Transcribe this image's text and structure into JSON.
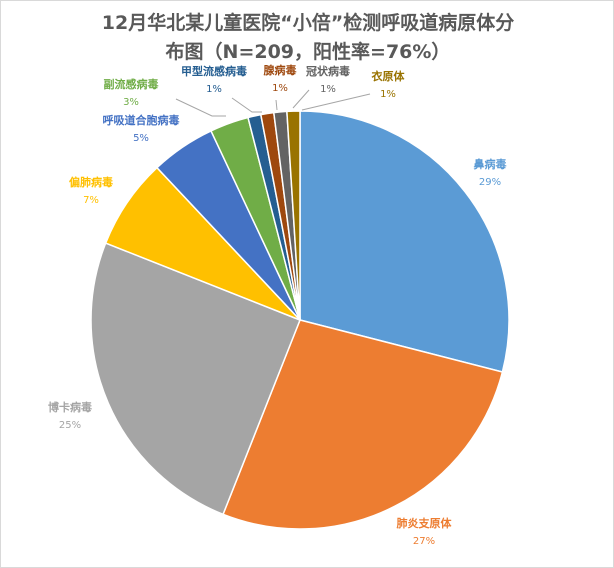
{
  "title_line1": "12月华北某儿童医院“小倍”检测呼吸道病原体分",
  "title_line2": "布图（N=209，阳性率=76%）",
  "chart_data": {
    "type": "pie",
    "title": "12月华北某儿童医院“小倍”检测呼吸道病原体分布图（N=209，阳性率=76%）",
    "start_angle": "12 o'clock",
    "direction": "clockwise",
    "slices": [
      {
        "label": "鼻病毒",
        "value": 29,
        "pct_label": "29%",
        "color": "#5B9BD5"
      },
      {
        "label": "肺炎支原体",
        "value": 27,
        "pct_label": "27%",
        "color": "#ED7D31"
      },
      {
        "label": "博卡病毒",
        "value": 25,
        "pct_label": "25%",
        "color": "#A5A5A5"
      },
      {
        "label": "偏肺病毒",
        "value": 7,
        "pct_label": "7%",
        "color": "#FFC000"
      },
      {
        "label": "呼吸道合胞病毒",
        "value": 5,
        "pct_label": "5%",
        "color": "#4472C4"
      },
      {
        "label": "副流感病毒",
        "value": 3,
        "pct_label": "3%",
        "color": "#70AD47"
      },
      {
        "label": "甲型流感病毒",
        "value": 1,
        "pct_label": "1%",
        "color": "#255E91"
      },
      {
        "label": "腺病毒",
        "value": 1,
        "pct_label": "1%",
        "color": "#9E480E"
      },
      {
        "label": "冠状病毒",
        "value": 1,
        "pct_label": "1%",
        "color": "#636363"
      },
      {
        "label": "衣原体",
        "value": 1,
        "pct_label": "1%",
        "color": "#997300"
      }
    ]
  }
}
